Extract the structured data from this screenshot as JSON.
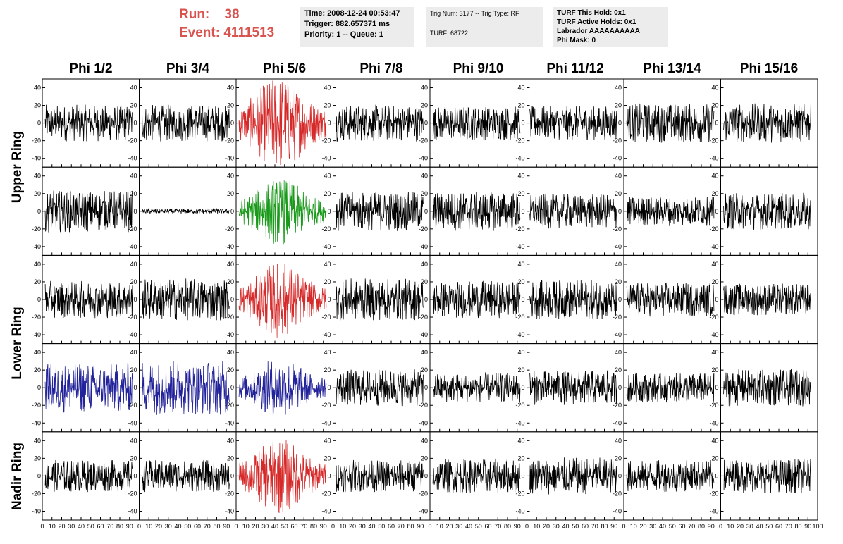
{
  "run_box": {
    "run_label": "Run:",
    "run_value": "38",
    "event_label": "Event:",
    "event_value": "4111513"
  },
  "time_box": {
    "line1": "Time: 2008-12-24 00:53:47",
    "line2": "Trigger: 882.657371 ms",
    "line3": "Priority: 1 -- Queue: 1"
  },
  "trig_box": {
    "line1": "Trig Num: 3177 -- Trig Type: RF",
    "line2": "TURF: 68722"
  },
  "turf_box": {
    "line1": "TURF This Hold: 0x1",
    "line2": "TURF Active Holds: 0x1",
    "line3": "Labrador AAAAAAAAAA",
    "line4": "Phi Mask: 0"
  },
  "columns": [
    "Phi 1/2",
    "Phi 3/4",
    "Phi 5/6",
    "Phi 7/8",
    "Phi 9/10",
    "Phi 11/12",
    "Phi 13/14",
    "Phi 15/16"
  ],
  "row_labels": [
    "Upper Ring",
    "Lower Ring",
    "Nadir Ring"
  ],
  "colors": {
    "black": "#000000",
    "red": "#d62a2a",
    "green": "#1a9a1a",
    "blue": "#22229a",
    "run_text": "#d9534f",
    "info_bg": "#ececec"
  },
  "chart_data": {
    "type": "line",
    "xlim": [
      0,
      100
    ],
    "ylim": [
      -50,
      50
    ],
    "x_ticks": [
      "0",
      "10",
      "20",
      "30",
      "40",
      "50",
      "60",
      "70",
      "80",
      "90",
      "100"
    ],
    "y_ticks": [
      "40",
      "20",
      "0",
      "-20",
      "-40"
    ],
    "rows": 5,
    "cols": 8,
    "samples_x": [
      3,
      93
    ],
    "panels": [
      [
        {
          "amp": 15,
          "color": "black"
        },
        {
          "amp": 15,
          "color": "black"
        },
        {
          "amp": 32,
          "color": "red",
          "burst": true
        },
        {
          "amp": 15,
          "color": "black"
        },
        {
          "amp": 14,
          "color": "black"
        },
        {
          "amp": 14,
          "color": "black"
        },
        {
          "amp": 16,
          "color": "black"
        },
        {
          "amp": 16,
          "color": "black"
        }
      ],
      [
        {
          "amp": 17,
          "color": "black"
        },
        {
          "amp": 2,
          "color": "black"
        },
        {
          "amp": 22,
          "color": "green",
          "burst": true
        },
        {
          "amp": 16,
          "color": "black"
        },
        {
          "amp": 16,
          "color": "black"
        },
        {
          "amp": 14,
          "color": "black"
        },
        {
          "amp": 12,
          "color": "black"
        },
        {
          "amp": 15,
          "color": "black"
        }
      ],
      [
        {
          "amp": 15,
          "color": "black"
        },
        {
          "amp": 17,
          "color": "black"
        },
        {
          "amp": 25,
          "color": "red",
          "burst": true
        },
        {
          "amp": 17,
          "color": "black"
        },
        {
          "amp": 15,
          "color": "black"
        },
        {
          "amp": 16,
          "color": "black"
        },
        {
          "amp": 14,
          "color": "black"
        },
        {
          "amp": 13,
          "color": "black"
        }
      ],
      [
        {
          "amp": 20,
          "color": "blue"
        },
        {
          "amp": 22,
          "color": "blue"
        },
        {
          "amp": 20,
          "color": "blue",
          "burst": true
        },
        {
          "amp": 15,
          "color": "black"
        },
        {
          "amp": 12,
          "color": "black"
        },
        {
          "amp": 14,
          "color": "black"
        },
        {
          "amp": 12,
          "color": "black"
        },
        {
          "amp": 15,
          "color": "black"
        }
      ],
      [
        {
          "amp": 13,
          "color": "black"
        },
        {
          "amp": 13,
          "color": "black"
        },
        {
          "amp": 25,
          "color": "red",
          "burst": true
        },
        {
          "amp": 13,
          "color": "black"
        },
        {
          "amp": 14,
          "color": "black"
        },
        {
          "amp": 15,
          "color": "black"
        },
        {
          "amp": 13,
          "color": "black"
        },
        {
          "amp": 14,
          "color": "black"
        }
      ]
    ]
  }
}
